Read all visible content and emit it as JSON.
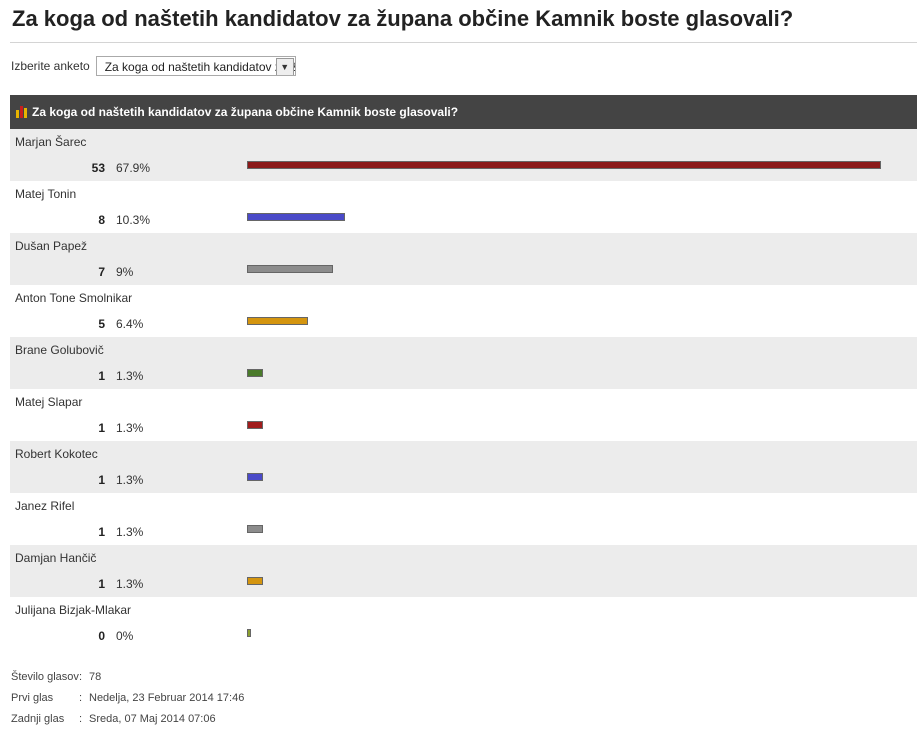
{
  "page": {
    "title": "Za koga od naštetih kandidatov za župana občine Kamnik boste glasovali?"
  },
  "selector": {
    "label": "Izberite anketo",
    "value": "Za koga od naštetih kandidatov za župana občine Kamnik boste glasovali?"
  },
  "poll": {
    "header": "Za koga od naštetih kandidatov za župana občine Kamnik boste glasovali?",
    "options": [
      {
        "name": "Marjan Šarec",
        "votes": "53",
        "percent": "67.9%",
        "fraction": 1.0,
        "color": "#8b1a1a"
      },
      {
        "name": "Matej Tonin",
        "votes": "8",
        "percent": "10.3%",
        "fraction": 0.152,
        "color": "#4a4ac8"
      },
      {
        "name": "Dušan Papež",
        "votes": "7",
        "percent": "9%",
        "fraction": 0.133,
        "color": "#8c8c8c"
      },
      {
        "name": "Anton Tone Smolnikar",
        "votes": "5",
        "percent": "6.4%",
        "fraction": 0.094,
        "color": "#d4950f"
      },
      {
        "name": "Brane Golubovič",
        "votes": "1",
        "percent": "1.3%",
        "fraction": 0.019,
        "color": "#4a7a2a"
      },
      {
        "name": "Matej Slapar",
        "votes": "1",
        "percent": "1.3%",
        "fraction": 0.019,
        "color": "#a01c1c"
      },
      {
        "name": "Robert Kokotec",
        "votes": "1",
        "percent": "1.3%",
        "fraction": 0.019,
        "color": "#4a4ac8"
      },
      {
        "name": "Janez Rifel",
        "votes": "1",
        "percent": "1.3%",
        "fraction": 0.019,
        "color": "#8c8c8c"
      },
      {
        "name": "Damjan Hančič",
        "votes": "1",
        "percent": "1.3%",
        "fraction": 0.019,
        "color": "#d4950f"
      },
      {
        "name": "Julijana Bizjak-Mlakar",
        "votes": "0",
        "percent": "0%",
        "fraction": 0.0,
        "color": "#8ca030"
      }
    ]
  },
  "footer": {
    "total_label": "Število glasov",
    "total_value": "78",
    "first_label": "Prvi glas",
    "first_value": "Nedelja, 23 Februar 2014 17:46",
    "last_label": "Zadnji glas",
    "last_value": "Sreda, 07 Maj 2014 07:06"
  }
}
